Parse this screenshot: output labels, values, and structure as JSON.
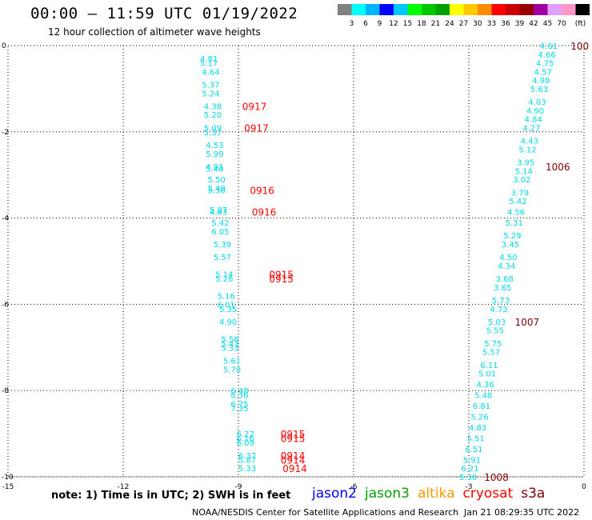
{
  "header": {
    "title": "00:00 – 11:59 UTC 01/19/2022",
    "subtitle": "12 hour collection of altimeter wave heights"
  },
  "legend": {
    "colors": [
      "#808080",
      "#00ffff",
      "#00b4ff",
      "#0000ff",
      "#00c8ff",
      "#00ff00",
      "#00c800",
      "#00a000",
      "#ffff00",
      "#ffc800",
      "#ff8c00",
      "#ff0000",
      "#c80000",
      "#960000",
      "#a000a0",
      "#e0a0ff",
      "#ff96c8",
      "#000000"
    ],
    "labels": [
      "3",
      "6",
      "9",
      "12",
      "15",
      "18",
      "21",
      "24",
      "27",
      "30",
      "33",
      "36",
      "39",
      "42",
      "45",
      "70",
      "(ft)"
    ]
  },
  "footer": {
    "note": "note:  1) Time is in UTC;  2) SWH is in feet",
    "missions": [
      {
        "name": "jason2",
        "color": "#0000ff"
      },
      {
        "name": "jason3",
        "color": "#00a000"
      },
      {
        "name": "altika",
        "color": "#ff9900"
      },
      {
        "name": "cryosat",
        "color": "#ff0000"
      },
      {
        "name": "s3a",
        "color": "#800000"
      }
    ],
    "credit": "NOAA/NESDIS Center for Satellite Applications and Research",
    "timestamp": "Jan 21 08:29:35 UTC 2022"
  },
  "chart_data": {
    "type": "scatter",
    "xlim": [
      -15,
      0
    ],
    "ylim": [
      -10,
      0
    ],
    "x_ticks": [
      "-15",
      "-12",
      "-9",
      "-6",
      "-3",
      "0"
    ],
    "y_ticks": [
      "0",
      "-2",
      "-4",
      "-6",
      "-8",
      "-10"
    ],
    "grid": true,
    "wave_labels": [
      {
        "x": -10.0,
        "y": -0.3,
        "v": "4.81"
      },
      {
        "x": -10.0,
        "y": -0.4,
        "v": "5.17"
      },
      {
        "x": -9.95,
        "y": -0.6,
        "v": "4.64"
      },
      {
        "x": -9.95,
        "y": -0.9,
        "v": "5.37"
      },
      {
        "x": -9.95,
        "y": -1.1,
        "v": "5.24"
      },
      {
        "x": -9.9,
        "y": -1.4,
        "v": "4.38"
      },
      {
        "x": -9.9,
        "y": -1.6,
        "v": "5.20"
      },
      {
        "x": -9.9,
        "y": -1.9,
        "v": "5.09"
      },
      {
        "x": -9.9,
        "y": -2.0,
        "v": "5.37"
      },
      {
        "x": -9.85,
        "y": -2.3,
        "v": "4.53"
      },
      {
        "x": -9.85,
        "y": -2.5,
        "v": "5.99"
      },
      {
        "x": -9.85,
        "y": -2.8,
        "v": "4.91"
      },
      {
        "x": -9.85,
        "y": -2.85,
        "v": "5.40"
      },
      {
        "x": -9.8,
        "y": -3.1,
        "v": "5.50"
      },
      {
        "x": -9.8,
        "y": -3.3,
        "v": "5.49"
      },
      {
        "x": -9.8,
        "y": -3.35,
        "v": "5.30"
      },
      {
        "x": -9.75,
        "y": -3.8,
        "v": "5.87"
      },
      {
        "x": -9.75,
        "y": -3.85,
        "v": "4.83"
      },
      {
        "x": -9.7,
        "y": -4.1,
        "v": "5.42"
      },
      {
        "x": -9.7,
        "y": -4.3,
        "v": "6.05"
      },
      {
        "x": -9.65,
        "y": -4.6,
        "v": "5.39"
      },
      {
        "x": -9.65,
        "y": -4.9,
        "v": "5.57"
      },
      {
        "x": -9.6,
        "y": -5.3,
        "v": "5.14"
      },
      {
        "x": -9.6,
        "y": -5.4,
        "v": "5.26"
      },
      {
        "x": -9.55,
        "y": -5.8,
        "v": "5.16"
      },
      {
        "x": -9.55,
        "y": -6.0,
        "v": "6.01"
      },
      {
        "x": -9.5,
        "y": -6.1,
        "v": "5.35"
      },
      {
        "x": -9.5,
        "y": -6.4,
        "v": "4.90"
      },
      {
        "x": -9.45,
        "y": -6.8,
        "v": "5.56"
      },
      {
        "x": -9.45,
        "y": -6.9,
        "v": "5.43"
      },
      {
        "x": -9.45,
        "y": -7.0,
        "v": "5.33"
      },
      {
        "x": -9.4,
        "y": -7.3,
        "v": "5.61"
      },
      {
        "x": -9.4,
        "y": -7.5,
        "v": "5.70"
      },
      {
        "x": -9.2,
        "y": -8.0,
        "v": "6.48"
      },
      {
        "x": -9.2,
        "y": -8.1,
        "v": "6.36"
      },
      {
        "x": -9.2,
        "y": -8.3,
        "v": "6.75"
      },
      {
        "x": -9.2,
        "y": -8.4,
        "v": "7.35"
      },
      {
        "x": -9.05,
        "y": -9.0,
        "v": "6.22"
      },
      {
        "x": -9.05,
        "y": -9.1,
        "v": "6.16"
      },
      {
        "x": -9.05,
        "y": -9.2,
        "v": "6.09"
      },
      {
        "x": -9.0,
        "y": -9.5,
        "v": "6.37"
      },
      {
        "x": -9.0,
        "y": -9.6,
        "v": "5.87"
      },
      {
        "x": -9.0,
        "y": -9.8,
        "v": "5.33"
      },
      {
        "x": -1.15,
        "y": 0.0,
        "v": "4.61"
      },
      {
        "x": -1.2,
        "y": -0.2,
        "v": "4.66"
      },
      {
        "x": -1.25,
        "y": -0.4,
        "v": "4.75"
      },
      {
        "x": -1.3,
        "y": -0.6,
        "v": "4.57"
      },
      {
        "x": -1.35,
        "y": -0.8,
        "v": "4.98"
      },
      {
        "x": -1.4,
        "y": -1.0,
        "v": "5.63"
      },
      {
        "x": -1.45,
        "y": -1.3,
        "v": "4.03"
      },
      {
        "x": -1.5,
        "y": -1.5,
        "v": "4.90"
      },
      {
        "x": -1.55,
        "y": -1.7,
        "v": "4.84"
      },
      {
        "x": -1.6,
        "y": -1.9,
        "v": "4.27"
      },
      {
        "x": -1.65,
        "y": -2.2,
        "v": "4.43"
      },
      {
        "x": -1.7,
        "y": -2.4,
        "v": "5.12"
      },
      {
        "x": -1.75,
        "y": -2.7,
        "v": "3.95"
      },
      {
        "x": -1.8,
        "y": -2.9,
        "v": "5.14"
      },
      {
        "x": -1.85,
        "y": -3.1,
        "v": "3.02"
      },
      {
        "x": -1.9,
        "y": -3.4,
        "v": "3.79"
      },
      {
        "x": -1.95,
        "y": -3.6,
        "v": "5.42"
      },
      {
        "x": -2.0,
        "y": -3.85,
        "v": "4.56"
      },
      {
        "x": -2.05,
        "y": -4.1,
        "v": "5.31"
      },
      {
        "x": -2.1,
        "y": -4.4,
        "v": "5.29"
      },
      {
        "x": -2.15,
        "y": -4.6,
        "v": "3.45"
      },
      {
        "x": -2.2,
        "y": -4.9,
        "v": "4.50"
      },
      {
        "x": -2.25,
        "y": -5.1,
        "v": "4.34"
      },
      {
        "x": -2.3,
        "y": -5.4,
        "v": "3.68"
      },
      {
        "x": -2.35,
        "y": -5.6,
        "v": "3.65"
      },
      {
        "x": -2.4,
        "y": -5.9,
        "v": "5.73"
      },
      {
        "x": -2.45,
        "y": -6.1,
        "v": "4.73"
      },
      {
        "x": -2.5,
        "y": -6.4,
        "v": "5.03"
      },
      {
        "x": -2.55,
        "y": -6.6,
        "v": "5.55"
      },
      {
        "x": -2.6,
        "y": -6.9,
        "v": "5.75"
      },
      {
        "x": -2.65,
        "y": -7.1,
        "v": "5.57"
      },
      {
        "x": -2.7,
        "y": -7.4,
        "v": "6.11"
      },
      {
        "x": -2.75,
        "y": -7.6,
        "v": "5.01"
      },
      {
        "x": -2.8,
        "y": -7.85,
        "v": "4.36"
      },
      {
        "x": -2.85,
        "y": -8.1,
        "v": "5.48"
      },
      {
        "x": -2.9,
        "y": -8.35,
        "v": "6.81"
      },
      {
        "x": -2.95,
        "y": -8.6,
        "v": "5.26"
      },
      {
        "x": -3.0,
        "y": -8.85,
        "v": "4.83"
      },
      {
        "x": -3.05,
        "y": -9.1,
        "v": "5.51"
      },
      {
        "x": -3.1,
        "y": -9.35,
        "v": "6.51"
      },
      {
        "x": -3.15,
        "y": -9.6,
        "v": "5.91"
      },
      {
        "x": -3.2,
        "y": -9.8,
        "v": "6.21"
      },
      {
        "x": -3.25,
        "y": -10.0,
        "v": "5.30"
      }
    ],
    "time_labels": [
      {
        "x": -8.9,
        "y": -1.4,
        "v": "0917",
        "mission": "cryosat"
      },
      {
        "x": -8.85,
        "y": -1.9,
        "v": "0917",
        "mission": "cryosat"
      },
      {
        "x": -8.7,
        "y": -3.35,
        "v": "0916",
        "mission": "cryosat"
      },
      {
        "x": -8.65,
        "y": -3.85,
        "v": "0916",
        "mission": "cryosat"
      },
      {
        "x": -8.2,
        "y": -5.3,
        "v": "0915",
        "mission": "cryosat"
      },
      {
        "x": -8.2,
        "y": -5.4,
        "v": "0915",
        "mission": "cryosat"
      },
      {
        "x": -7.9,
        "y": -9.0,
        "v": "0915",
        "mission": "cryosat"
      },
      {
        "x": -7.9,
        "y": -9.1,
        "v": "0915",
        "mission": "cryosat"
      },
      {
        "x": -7.9,
        "y": -9.5,
        "v": "0914",
        "mission": "cryosat"
      },
      {
        "x": -7.9,
        "y": -9.6,
        "v": "0914",
        "mission": "cryosat"
      },
      {
        "x": -7.85,
        "y": -9.8,
        "v": "0914",
        "mission": "cryosat"
      },
      {
        "x": -0.35,
        "y": 0.0,
        "v": "100",
        "mission": "s3a"
      },
      {
        "x": -1.0,
        "y": -2.8,
        "v": "1006",
        "mission": "s3a"
      },
      {
        "x": -1.8,
        "y": -6.4,
        "v": "1007",
        "mission": "s3a"
      },
      {
        "x": -2.6,
        "y": -10.0,
        "v": "1008",
        "mission": "s3a"
      }
    ]
  }
}
